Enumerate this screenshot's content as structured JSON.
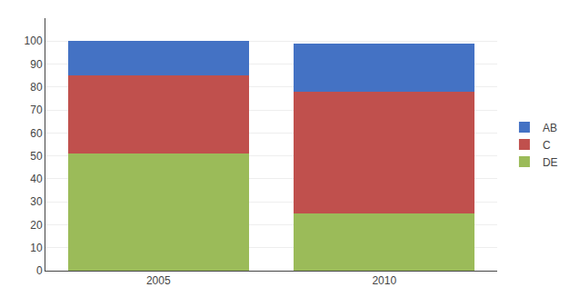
{
  "chart_data": {
    "type": "bar",
    "stacked": true,
    "categories": [
      "2005",
      "2010"
    ],
    "series": [
      {
        "name": "DE",
        "color": "#9BBB59",
        "values": [
          51,
          25
        ]
      },
      {
        "name": "C",
        "color": "#C0504D",
        "values": [
          34,
          53
        ]
      },
      {
        "name": "AB",
        "color": "#4472C4",
        "values": [
          15,
          21
        ]
      }
    ],
    "ylim": [
      0,
      110
    ],
    "yticks": [
      0,
      10,
      20,
      30,
      40,
      50,
      60,
      70,
      80,
      90,
      100
    ],
    "grid": true,
    "legend": "right"
  }
}
